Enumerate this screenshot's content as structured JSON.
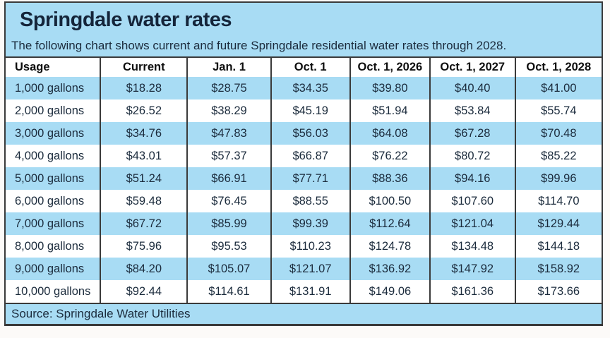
{
  "colors": {
    "panel_bg": "#a8dcf4",
    "row_alt": "#ffffff",
    "ink": "#1b2b3c",
    "line": "#3a3a3a"
  },
  "chart_data": {
    "type": "table",
    "title": "Springdale water rates",
    "subtitle": "The following chart shows current and future Springdale residential water rates through 2028.",
    "source": "Source: Springdale Water Utilities",
    "columns": [
      "Usage",
      "Current",
      "Jan. 1",
      "Oct. 1",
      "Oct. 1, 2026",
      "Oct. 1, 2027",
      "Oct. 1, 2028"
    ],
    "rows": [
      [
        "1,000 gallons",
        "$18.28",
        "$28.75",
        "$34.35",
        "$39.80",
        "$40.40",
        "$41.00"
      ],
      [
        "2,000 gallons",
        "$26.52",
        "$38.29",
        "$45.19",
        "$51.94",
        "$53.84",
        "$55.74"
      ],
      [
        "3,000 gallons",
        "$34.76",
        "$47.83",
        "$56.03",
        "$64.08",
        "$67.28",
        "$70.48"
      ],
      [
        "4,000 gallons",
        "$43.01",
        "$57.37",
        "$66.87",
        "$76.22",
        "$80.72",
        "$85.22"
      ],
      [
        "5,000 gallons",
        "$51.24",
        "$66.91",
        "$77.71",
        "$88.36",
        "$94.16",
        "$99.96"
      ],
      [
        "6,000 gallons",
        "$59.48",
        "$76.45",
        "$88.55",
        "$100.50",
        "$107.60",
        "$114.70"
      ],
      [
        "7,000 gallons",
        "$67.72",
        "$85.99",
        "$99.39",
        "$112.64",
        "$121.04",
        "$129.44"
      ],
      [
        "8,000 gallons",
        "$75.96",
        "$95.53",
        "$110.23",
        "$124.78",
        "$134.48",
        "$144.18"
      ],
      [
        "9,000 gallons",
        "$84.20",
        "$105.07",
        "$121.07",
        "$136.92",
        "$147.92",
        "$158.92"
      ],
      [
        "10,000 gallons",
        "$92.44",
        "$114.61",
        "$131.91",
        "$149.06",
        "$161.36",
        "$173.66"
      ]
    ],
    "column_widths_pct": [
      15.9,
      14.6,
      14.0,
      13.3,
      13.4,
      14.3,
      14.5
    ]
  }
}
